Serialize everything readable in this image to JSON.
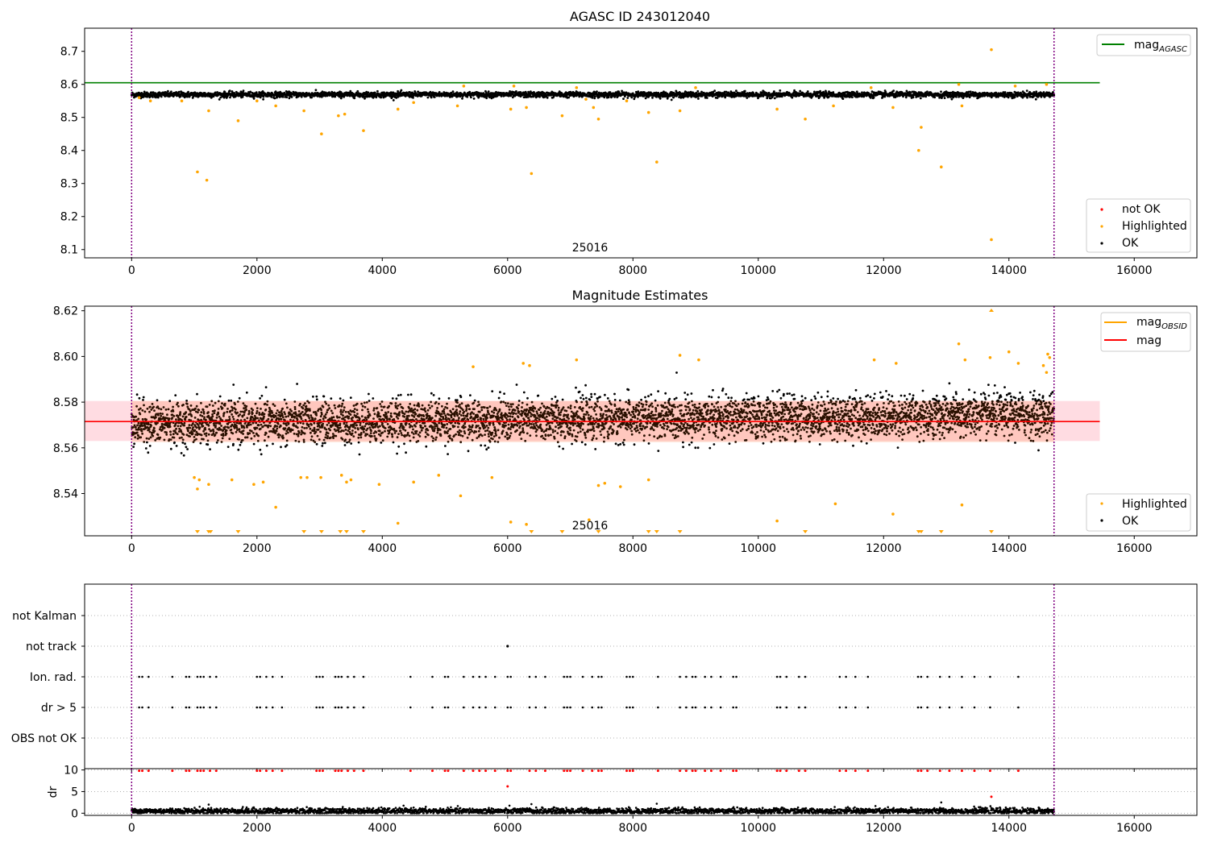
{
  "figure": {
    "colors": {
      "ok": "#000000",
      "highlighted": "#ffa500",
      "not_ok": "#ff0000",
      "mag_agasc_line": "#008000",
      "mag_line": "#ff0000",
      "mag_obsid_line": "#ffa500",
      "band": "#ffc0cb",
      "obsid_divider": "#800080"
    }
  },
  "chart_data": [
    {
      "type": "scatter",
      "title": "AGASC ID 243012040",
      "xlim": [
        -750,
        17000
      ],
      "ylim": [
        8.075,
        8.77
      ],
      "xticks": [
        0,
        2000,
        4000,
        6000,
        8000,
        10000,
        12000,
        14000,
        16000
      ],
      "yticks": [
        8.1,
        8.2,
        8.3,
        8.4,
        8.5,
        8.6,
        8.7
      ],
      "ytick_labels": [
        "8.1",
        "8.2",
        "8.3",
        "8.4",
        "8.5",
        "8.6",
        "8.7"
      ],
      "obsid_label": "25016",
      "obsid_boundaries": [
        0,
        14720
      ],
      "lines": [
        {
          "label_main": "mag",
          "label_sub": "AGASC",
          "y": 8.605,
          "x": [
            -750,
            15450
          ]
        }
      ],
      "legend_lines": [
        "mag"
      ],
      "legend_sub": [
        "AGASC"
      ],
      "legend_points": [
        "not OK",
        "Highlighted",
        "OK"
      ],
      "ok_band": {
        "center": 8.569,
        "halfwidth": 0.009,
        "x_range": [
          0,
          14720
        ]
      },
      "highlighted_points": [
        [
          120,
          8.56
        ],
        [
          300,
          8.55
        ],
        [
          800,
          8.55
        ],
        [
          1050,
          8.335
        ],
        [
          1200,
          8.31
        ],
        [
          1230,
          8.52
        ],
        [
          1700,
          8.49
        ],
        [
          2000,
          8.55
        ],
        [
          2300,
          8.535
        ],
        [
          2750,
          8.52
        ],
        [
          3030,
          8.45
        ],
        [
          3300,
          8.505
        ],
        [
          3400,
          8.51
        ],
        [
          3700,
          8.46
        ],
        [
          4250,
          8.525
        ],
        [
          4500,
          8.545
        ],
        [
          5200,
          8.535
        ],
        [
          6050,
          8.525
        ],
        [
          6300,
          8.53
        ],
        [
          6380,
          8.33
        ],
        [
          6870,
          8.505
        ],
        [
          7250,
          8.555
        ],
        [
          7370,
          8.53
        ],
        [
          7450,
          8.495
        ],
        [
          7900,
          8.55
        ],
        [
          8250,
          8.515
        ],
        [
          8380,
          8.365
        ],
        [
          8750,
          8.52
        ],
        [
          9000,
          8.59
        ],
        [
          10300,
          8.525
        ],
        [
          10750,
          8.495
        ],
        [
          11200,
          8.535
        ],
        [
          12150,
          8.53
        ],
        [
          12560,
          8.4
        ],
        [
          12600,
          8.47
        ],
        [
          12920,
          8.35
        ],
        [
          13250,
          8.535
        ],
        [
          13720,
          8.705
        ],
        [
          13720,
          8.13
        ],
        [
          14100,
          8.595
        ],
        [
          14600,
          8.6
        ],
        [
          5300,
          8.595
        ],
        [
          6100,
          8.595
        ],
        [
          7100,
          8.59
        ],
        [
          11800,
          8.59
        ],
        [
          13200,
          8.6
        ]
      ],
      "ok_series": {
        "x_range": [
          0,
          14720
        ],
        "center": 8.569,
        "spread": 0.012
      }
    },
    {
      "type": "scatter",
      "title": "Magnitude Estimates",
      "xlim": [
        -750,
        17000
      ],
      "ylim": [
        8.5215,
        8.622
      ],
      "xticks": [
        0,
        2000,
        4000,
        6000,
        8000,
        10000,
        12000,
        14000,
        16000
      ],
      "yticks": [
        8.54,
        8.56,
        8.58,
        8.6,
        8.62
      ],
      "ytick_labels": [
        "8.54",
        "8.56",
        "8.58",
        "8.60",
        "8.62"
      ],
      "obsid_label": "25016",
      "obsid_boundaries": [
        0,
        14720
      ],
      "legend_lines": [
        "mag",
        "mag"
      ],
      "legend_sub": [
        "OBSID",
        ""
      ],
      "legend_points": [
        "Highlighted",
        "OK"
      ],
      "mag_line": {
        "y": 8.5715,
        "x": [
          -750,
          15450
        ]
      },
      "mag_band": {
        "low": 8.563,
        "high": 8.5805,
        "x": [
          -750,
          15450
        ]
      },
      "obsid_band": {
        "low": 8.5625,
        "high": 8.5805,
        "x_range": [
          0,
          14720
        ]
      },
      "highlighted_points": [
        [
          1000,
          8.547
        ],
        [
          1050,
          8.542
        ],
        [
          1080,
          8.546
        ],
        [
          1230,
          8.544
        ],
        [
          1600,
          8.546
        ],
        [
          1950,
          8.544
        ],
        [
          2100,
          8.545
        ],
        [
          2300,
          8.534
        ],
        [
          2700,
          8.547
        ],
        [
          2800,
          8.547
        ],
        [
          3020,
          8.547
        ],
        [
          3350,
          8.548
        ],
        [
          3430,
          8.545
        ],
        [
          3500,
          8.546
        ],
        [
          3950,
          8.544
        ],
        [
          4250,
          8.527
        ],
        [
          4500,
          8.545
        ],
        [
          4900,
          8.548
        ],
        [
          5250,
          8.539
        ],
        [
          5450,
          8.5955
        ],
        [
          5750,
          8.547
        ],
        [
          6050,
          8.5275
        ],
        [
          6250,
          8.597
        ],
        [
          6300,
          8.5265
        ],
        [
          6350,
          8.596
        ],
        [
          7100,
          8.5985
        ],
        [
          7300,
          8.5285
        ],
        [
          7450,
          8.5435
        ],
        [
          7550,
          8.5445
        ],
        [
          7800,
          8.543
        ],
        [
          8250,
          8.546
        ],
        [
          8750,
          8.6005
        ],
        [
          9050,
          8.5985
        ],
        [
          10300,
          8.528
        ],
        [
          11230,
          8.5355
        ],
        [
          11850,
          8.5985
        ],
        [
          12150,
          8.531
        ],
        [
          12200,
          8.597
        ],
        [
          13200,
          8.6055
        ],
        [
          13300,
          8.5985
        ],
        [
          13250,
          8.535
        ],
        [
          13700,
          8.5995
        ],
        [
          14000,
          8.602
        ],
        [
          14150,
          8.597
        ],
        [
          14550,
          8.596
        ],
        [
          14620,
          8.601
        ],
        [
          14650,
          8.5995
        ],
        [
          14600,
          8.593
        ]
      ],
      "low_markers_x": [
        1050,
        1230,
        1260,
        1700,
        2750,
        3030,
        3330,
        3430,
        3700,
        6380,
        6870,
        7450,
        8250,
        8380,
        8750,
        10750,
        12560,
        12600,
        12920,
        13720
      ],
      "high_markers_x": [
        13720
      ],
      "ok_series": {
        "x_range": [
          0,
          14720
        ],
        "center": 8.5705,
        "spread": 0.0085
      }
    },
    {
      "type": "scatter",
      "title": "",
      "xlim": [
        -750,
        17000
      ],
      "xticks": [
        0,
        2000,
        4000,
        6000,
        8000,
        10000,
        12000,
        14000,
        16000
      ],
      "flag_categories": [
        "not Kalman",
        "not track",
        "Ion. rad.",
        "dr > 5",
        "OBS not OK"
      ],
      "obsid_boundaries": [
        0,
        14720
      ],
      "not_track_x": [
        6000
      ],
      "flag_x": [
        120,
        170,
        270,
        650,
        870,
        920,
        1050,
        1100,
        1150,
        1250,
        1350,
        2000,
        2050,
        2150,
        2250,
        2400,
        2950,
        3000,
        3050,
        3250,
        3300,
        3350,
        3450,
        3550,
        3700,
        4450,
        4800,
        5000,
        5050,
        5300,
        5450,
        5550,
        5650,
        5800,
        6000,
        6050,
        6350,
        6450,
        6600,
        6900,
        6950,
        7000,
        7200,
        7350,
        7450,
        7500,
        7900,
        7950,
        8000,
        8400,
        8750,
        8850,
        8950,
        9000,
        9150,
        9250,
        9400,
        9600,
        9650,
        10300,
        10350,
        10450,
        10650,
        10750,
        11300,
        11400,
        11550,
        11750,
        12550,
        12600,
        12700,
        12900,
        13050,
        13250,
        13450,
        13700,
        14150
      ]
    },
    {
      "type": "scatter",
      "ylabel": "dr",
      "xlim": [
        -750,
        17000
      ],
      "ylim": [
        -0.5,
        10.3
      ],
      "xticks": [
        0,
        2000,
        4000,
        6000,
        8000,
        10000,
        12000,
        14000,
        16000
      ],
      "yticks": [
        0,
        5,
        10
      ],
      "ytick_labels": [
        "0",
        "5",
        "10"
      ],
      "obsid_boundaries": [
        0,
        14720
      ],
      "ok_series": {
        "x_range": [
          0,
          14720
        ],
        "center": 0.5,
        "spread": 0.35
      },
      "notok_points": [
        [
          6000,
          6.2
        ],
        [
          13720,
          3.8
        ]
      ],
      "ok_extra_points": [
        [
          1230,
          2.0
        ],
        [
          6380,
          2.1
        ],
        [
          8380,
          2.2
        ],
        [
          12920,
          2.5
        ]
      ]
    }
  ]
}
